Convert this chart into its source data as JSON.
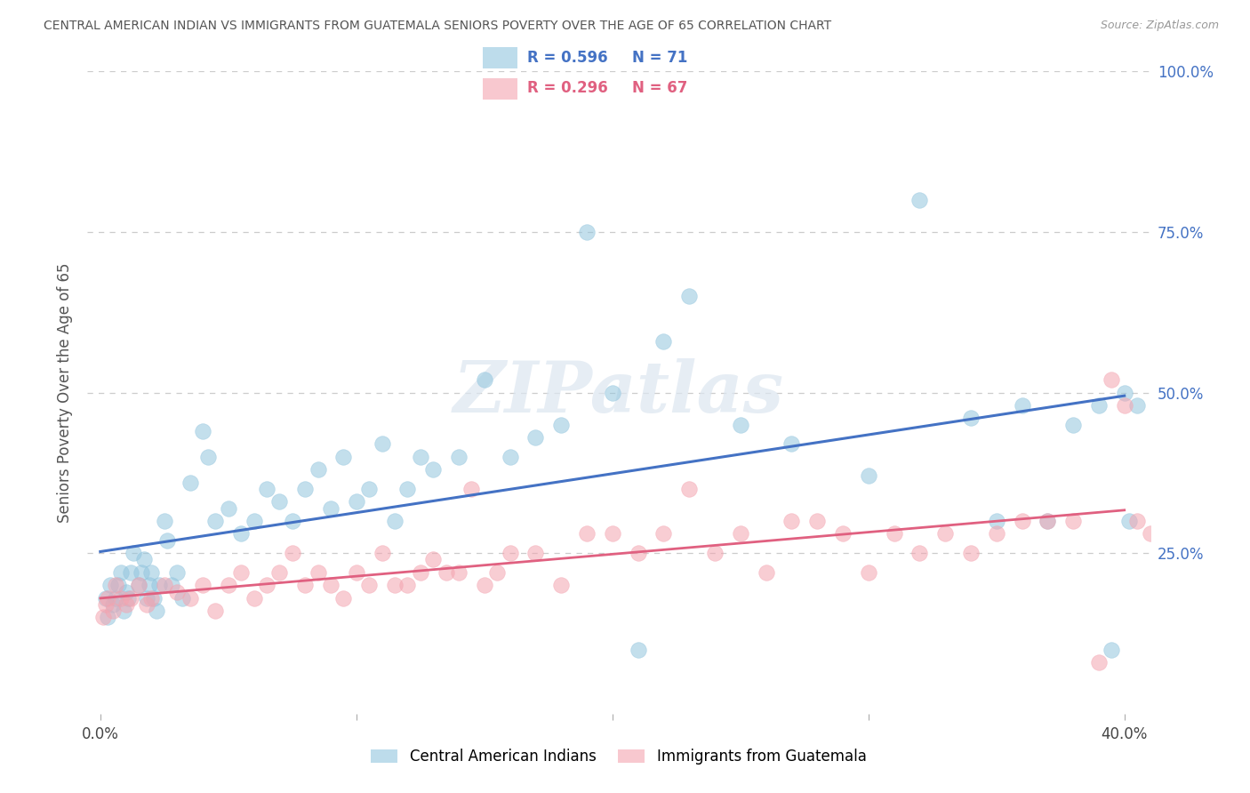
{
  "title": "CENTRAL AMERICAN INDIAN VS IMMIGRANTS FROM GUATEMALA SENIORS POVERTY OVER THE AGE OF 65 CORRELATION CHART",
  "source": "Source: ZipAtlas.com",
  "ylabel": "Seniors Poverty Over the Age of 65",
  "blue_R": 0.596,
  "blue_N": 71,
  "pink_R": 0.296,
  "pink_N": 67,
  "blue_color": "#92c5de",
  "pink_color": "#f4a4b0",
  "blue_line_color": "#4472c4",
  "pink_line_color": "#e06080",
  "blue_label": "Central American Indians",
  "pink_label": "Immigrants from Guatemala",
  "watermark": "ZIPatlas",
  "background_color": "#ffffff",
  "grid_color": "#cccccc",
  "right_axis_color": "#4472c4",
  "title_color": "#555555",
  "blue_scatter_x": [
    0.2,
    0.3,
    0.4,
    0.5,
    0.6,
    0.7,
    0.8,
    0.9,
    1.0,
    1.1,
    1.2,
    1.3,
    1.5,
    1.6,
    1.7,
    1.8,
    1.9,
    2.0,
    2.1,
    2.2,
    2.3,
    2.5,
    2.6,
    2.8,
    3.0,
    3.2,
    3.5,
    4.0,
    4.2,
    4.5,
    5.0,
    5.5,
    6.0,
    6.5,
    7.0,
    7.5,
    8.0,
    8.5,
    9.0,
    9.5,
    10.0,
    10.5,
    11.0,
    11.5,
    12.0,
    12.5,
    13.0,
    14.0,
    15.0,
    16.0,
    17.0,
    18.0,
    19.0,
    20.0,
    21.0,
    22.0,
    23.0,
    25.0,
    27.0,
    30.0,
    32.0,
    34.0,
    35.0,
    36.0,
    37.0,
    38.0,
    39.0,
    39.5,
    40.0,
    40.2,
    40.5
  ],
  "blue_scatter_y": [
    18.0,
    15.0,
    20.0,
    17.0,
    18.0,
    20.0,
    22.0,
    16.0,
    19.0,
    18.0,
    22.0,
    25.0,
    20.0,
    22.0,
    24.0,
    18.0,
    20.0,
    22.0,
    18.0,
    16.0,
    20.0,
    30.0,
    27.0,
    20.0,
    22.0,
    18.0,
    36.0,
    44.0,
    40.0,
    30.0,
    32.0,
    28.0,
    30.0,
    35.0,
    33.0,
    30.0,
    35.0,
    38.0,
    32.0,
    40.0,
    33.0,
    35.0,
    42.0,
    30.0,
    35.0,
    40.0,
    38.0,
    40.0,
    52.0,
    40.0,
    43.0,
    45.0,
    75.0,
    50.0,
    10.0,
    58.0,
    65.0,
    45.0,
    42.0,
    37.0,
    80.0,
    46.0,
    30.0,
    48.0,
    30.0,
    45.0,
    48.0,
    10.0,
    50.0,
    30.0,
    48.0
  ],
  "pink_scatter_x": [
    0.1,
    0.2,
    0.3,
    0.5,
    0.6,
    0.8,
    1.0,
    1.2,
    1.5,
    1.8,
    2.0,
    2.5,
    3.0,
    3.5,
    4.0,
    4.5,
    5.0,
    5.5,
    6.0,
    6.5,
    7.0,
    7.5,
    8.0,
    8.5,
    9.0,
    9.5,
    10.0,
    10.5,
    11.0,
    11.5,
    12.0,
    12.5,
    13.0,
    13.5,
    14.0,
    14.5,
    15.0,
    15.5,
    16.0,
    17.0,
    18.0,
    19.0,
    20.0,
    21.0,
    22.0,
    23.0,
    24.0,
    25.0,
    26.0,
    27.0,
    28.0,
    29.0,
    30.0,
    31.0,
    32.0,
    33.0,
    34.0,
    35.0,
    36.0,
    37.0,
    38.0,
    39.0,
    39.5,
    40.0,
    40.5,
    41.0,
    41.5
  ],
  "pink_scatter_y": [
    15.0,
    17.0,
    18.0,
    16.0,
    20.0,
    18.0,
    17.0,
    18.0,
    20.0,
    17.0,
    18.0,
    20.0,
    19.0,
    18.0,
    20.0,
    16.0,
    20.0,
    22.0,
    18.0,
    20.0,
    22.0,
    25.0,
    20.0,
    22.0,
    20.0,
    18.0,
    22.0,
    20.0,
    25.0,
    20.0,
    20.0,
    22.0,
    24.0,
    22.0,
    22.0,
    35.0,
    20.0,
    22.0,
    25.0,
    25.0,
    20.0,
    28.0,
    28.0,
    25.0,
    28.0,
    35.0,
    25.0,
    28.0,
    22.0,
    30.0,
    30.0,
    28.0,
    22.0,
    28.0,
    25.0,
    28.0,
    25.0,
    28.0,
    30.0,
    30.0,
    30.0,
    8.0,
    52.0,
    48.0,
    30.0,
    28.0,
    30.0
  ]
}
